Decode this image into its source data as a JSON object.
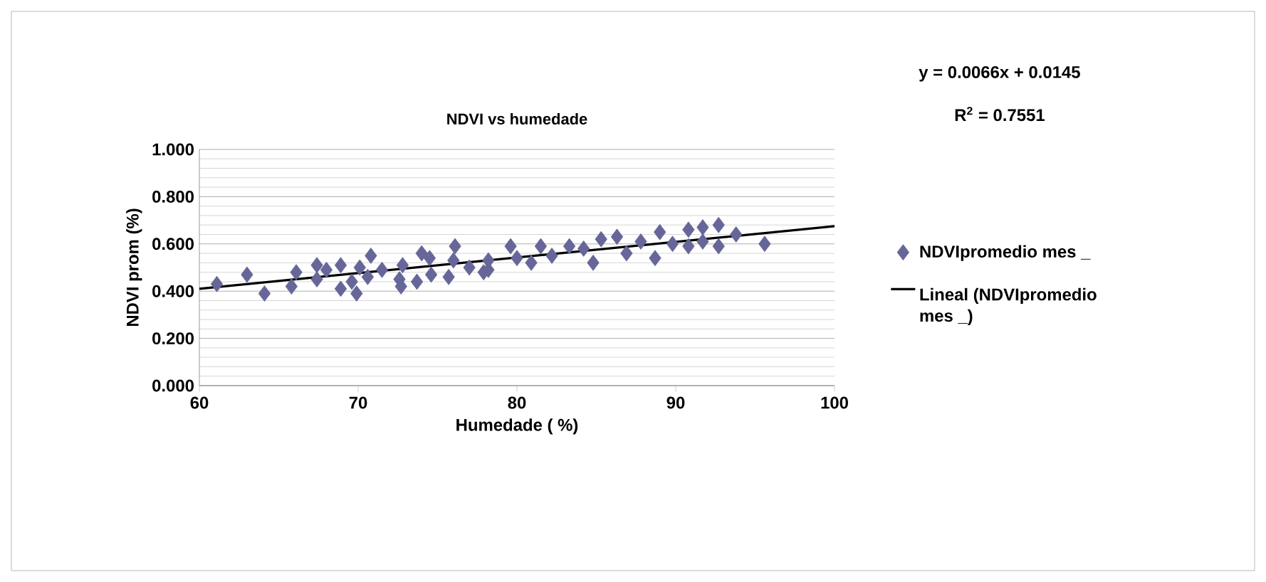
{
  "chart_data": {
    "type": "scatter",
    "title": "NDVI vs humedade",
    "xlabel": "Humedade ( %)",
    "ylabel": "NDVI prom (%)",
    "annotations": [
      "y = 0.0066x + 0.0145",
      "R$^{2}$ = 0.7551"
    ],
    "xlim": [
      60,
      100
    ],
    "xticks": [
      60,
      70,
      80,
      90,
      100
    ],
    "ylim": [
      0,
      1
    ],
    "yticks": [
      {
        "value": 0,
        "label": "0.000"
      },
      {
        "value": 0.2,
        "label": "0.200"
      },
      {
        "value": 0.4,
        "label": "0.400"
      },
      {
        "value": 0.6,
        "label": "0.600"
      },
      {
        "value": 0.8,
        "label": "0.800"
      },
      {
        "value": 1,
        "label": "1.000"
      }
    ],
    "grid": "y",
    "legend": "right",
    "marker": "diamond",
    "series": [
      {
        "name": "NDVIpromedio mes _",
        "color": "#666699",
        "x": [
          61.1,
          63.0,
          64.1,
          65.8,
          66.1,
          67.4,
          67.4,
          68.0,
          68.9,
          68.9,
          69.6,
          69.9,
          70.1,
          70.8,
          70.6,
          71.5,
          72.6,
          72.8,
          72.7,
          73.7,
          74.0,
          74.5,
          74.6,
          75.7,
          76.1,
          76.0,
          77.0,
          77.9,
          78.2,
          78.2,
          79.6,
          80.0,
          80.9,
          81.5,
          82.2,
          83.3,
          84.2,
          84.8,
          85.3,
          86.3,
          86.9,
          87.8,
          88.7,
          89.0,
          89.8,
          90.8,
          90.8,
          91.7,
          91.7,
          92.7,
          92.7,
          93.8,
          95.6
        ],
        "values": [
          0.43,
          0.47,
          0.39,
          0.42,
          0.48,
          0.45,
          0.51,
          0.49,
          0.51,
          0.41,
          0.44,
          0.39,
          0.5,
          0.55,
          0.46,
          0.49,
          0.45,
          0.51,
          0.42,
          0.44,
          0.56,
          0.54,
          0.47,
          0.46,
          0.59,
          0.53,
          0.5,
          0.48,
          0.53,
          0.49,
          0.59,
          0.54,
          0.52,
          0.59,
          0.55,
          0.59,
          0.58,
          0.52,
          0.62,
          0.63,
          0.56,
          0.61,
          0.54,
          0.65,
          0.6,
          0.66,
          0.59,
          0.67,
          0.61,
          0.68,
          0.59,
          0.64,
          0.6
        ]
      },
      {
        "name": "Lineal (NDVIpromedio mes _)",
        "type": "line",
        "color": "#000000",
        "line_style": "solid",
        "marker": "none",
        "x": [
          60,
          100
        ],
        "values": [
          0.41,
          0.675
        ]
      }
    ]
  }
}
